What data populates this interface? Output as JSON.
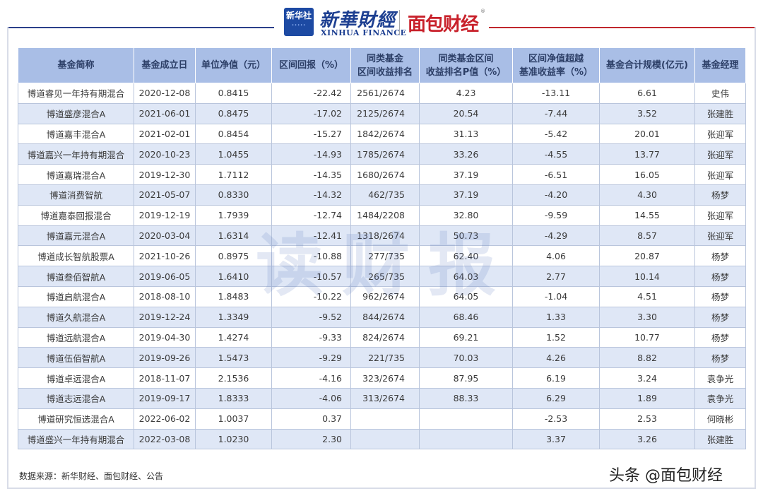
{
  "header": {
    "xinhua_badge": "新华社",
    "xinhua_cn": "新華財經",
    "xinhua_en": "XINHUA FINANCE",
    "mianbao_logo": "面包财经",
    "reg_mark": "®"
  },
  "watermark": "读财报",
  "table": {
    "headers": [
      "基金简称",
      "基金成立日",
      "单位净值（元）",
      "区间回报（%）",
      "同类基金区间收益排名",
      "同类基金区间收益排名P值（%）",
      "区间净值超越基准收益率（%）",
      "基金合计规模(亿元)",
      "基金经理"
    ],
    "rows": [
      [
        "博道睿见一年持有期混合",
        "2020-12-08",
        "0.8415",
        "-22.42",
        "2561/2674",
        "4.23",
        "-13.11",
        "6.61",
        "史伟"
      ],
      [
        "博道盛彦混合A",
        "2021-06-01",
        "0.8475",
        "-17.02",
        "2125/2674",
        "20.54",
        "-7.44",
        "3.52",
        "张建胜"
      ],
      [
        "博道嘉丰混合A",
        "2021-02-01",
        "0.8454",
        "-15.27",
        "1842/2674",
        "31.13",
        "-5.42",
        "20.01",
        "张迎军"
      ],
      [
        "博道嘉兴一年持有期混合",
        "2020-10-23",
        "1.0455",
        "-14.93",
        "1785/2674",
        "33.26",
        "-4.55",
        "13.77",
        "张迎军"
      ],
      [
        "博道嘉瑞混合A",
        "2019-12-30",
        "1.7112",
        "-14.35",
        "1680/2674",
        "37.19",
        "-6.51",
        "16.05",
        "张迎军"
      ],
      [
        "博道消费智航",
        "2021-05-07",
        "0.8330",
        "-14.32",
        "462/735",
        "37.19",
        "-4.20",
        "4.30",
        "杨梦"
      ],
      [
        "博道嘉泰回报混合",
        "2019-12-19",
        "1.7939",
        "-12.74",
        "1484/2208",
        "32.80",
        "-9.59",
        "14.55",
        "张迎军"
      ],
      [
        "博道嘉元混合A",
        "2020-03-04",
        "1.6314",
        "-12.41",
        "1318/2674",
        "50.73",
        "-4.29",
        "8.57",
        "张迎军"
      ],
      [
        "博道成长智航股票A",
        "2021-10-26",
        "0.8975",
        "-10.88",
        "277/735",
        "62.40",
        "4.06",
        "20.87",
        "杨梦"
      ],
      [
        "博道叁佰智航A",
        "2019-06-05",
        "1.6410",
        "-10.57",
        "265/735",
        "64.03",
        "2.77",
        "10.14",
        "杨梦"
      ],
      [
        "博道启航混合A",
        "2018-08-10",
        "1.8483",
        "-10.22",
        "962/2674",
        "64.05",
        "-1.04",
        "4.51",
        "杨梦"
      ],
      [
        "博道久航混合A",
        "2019-12-24",
        "1.3349",
        "-9.52",
        "844/2674",
        "68.46",
        "1.33",
        "3.30",
        "杨梦"
      ],
      [
        "博道远航混合A",
        "2019-04-30",
        "1.4274",
        "-9.33",
        "824/2674",
        "69.21",
        "1.52",
        "10.77",
        "杨梦"
      ],
      [
        "博道伍佰智航A",
        "2019-09-26",
        "1.5473",
        "-9.29",
        "221/735",
        "70.03",
        "4.26",
        "8.82",
        "杨梦"
      ],
      [
        "博道卓远混合A",
        "2018-11-07",
        "2.1536",
        "-4.16",
        "323/2674",
        "87.95",
        "6.19",
        "3.24",
        "袁争光"
      ],
      [
        "博道志远混合A",
        "2019-09-17",
        "1.8333",
        "-4.06",
        "313/2674",
        "88.33",
        "6.29",
        "1.89",
        "袁争光"
      ],
      [
        "博道研究恒选混合A",
        "2022-06-02",
        "1.0037",
        "0.37",
        "",
        "",
        "-2.53",
        "2.53",
        "何晓彬"
      ],
      [
        "博道盛兴一年持有期混合",
        "2022-03-08",
        "1.0230",
        "2.30",
        "",
        "",
        "3.37",
        "3.26",
        "张建胜"
      ]
    ]
  },
  "footer": {
    "source": "数据来源：新华财经、面包财经、公告",
    "brand": "头条 @面包财经"
  },
  "colors": {
    "header_bg": "#a9bee6",
    "alt_row": "#dfe7f6",
    "xinhua_blue": "#1d3f91",
    "mianbao_red": "#c8202a"
  }
}
